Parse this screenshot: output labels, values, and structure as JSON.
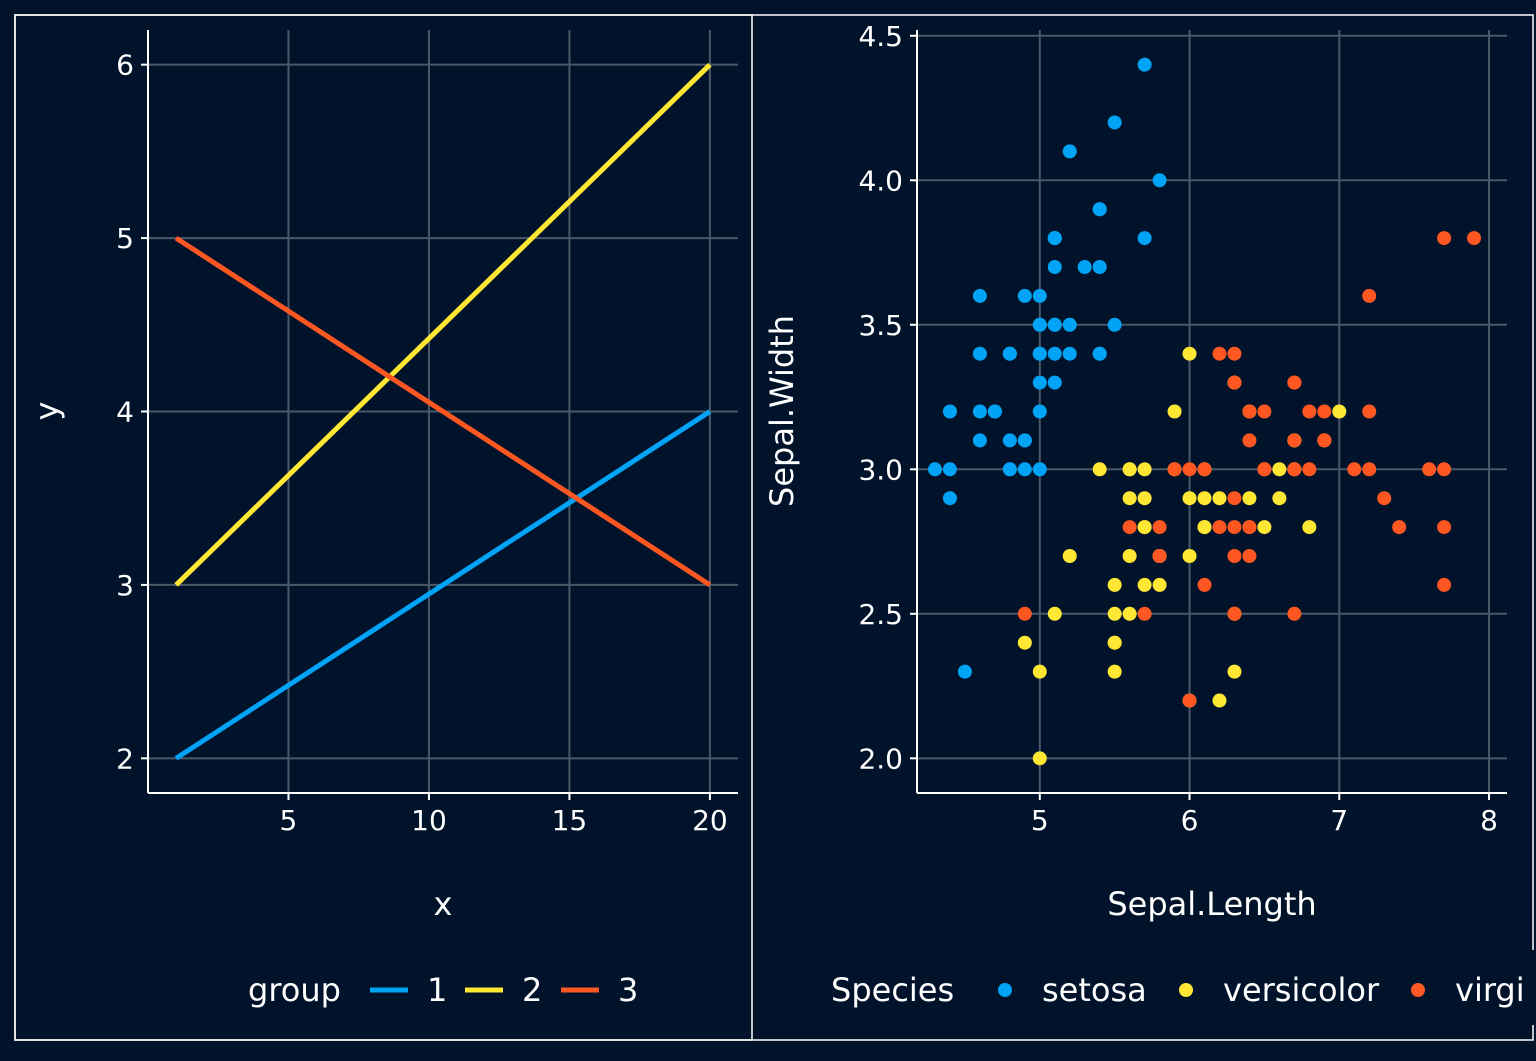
{
  "colors": {
    "background": "#00132a",
    "grid": "#4b5868",
    "axis": "#ffffff",
    "text": "#ffffff",
    "panel_border": "#ffffff"
  },
  "chart_data": [
    {
      "type": "line",
      "title": "",
      "xlabel": "x",
      "ylabel": "y",
      "xlim": [
        0,
        21
      ],
      "ylim": [
        1.8,
        6.2
      ],
      "xticks": [
        5,
        10,
        15,
        20
      ],
      "yticks": [
        2,
        3,
        4,
        5,
        6
      ],
      "grid": true,
      "legend": {
        "title": "group",
        "placement": "bottom"
      },
      "series": [
        {
          "name": "1",
          "color": "#00a3f5",
          "points": [
            [
              1,
              2
            ],
            [
              20,
              4
            ]
          ]
        },
        {
          "name": "2",
          "color": "#ffe733",
          "points": [
            [
              1,
              3
            ],
            [
              20,
              6
            ]
          ]
        },
        {
          "name": "3",
          "color": "#ff5722",
          "points": [
            [
              1,
              5
            ],
            [
              20,
              3
            ]
          ]
        }
      ]
    },
    {
      "type": "scatter",
      "title": "",
      "xlabel": "Sepal.Length",
      "ylabel": "Sepal.Width",
      "xlim": [
        4.18,
        8.12
      ],
      "ylim": [
        1.88,
        4.52
      ],
      "xticks": [
        5,
        6,
        7,
        8
      ],
      "yticks": [
        2.0,
        2.5,
        3.0,
        3.5,
        4.0,
        4.5
      ],
      "ytick_labels": [
        "2.0",
        "2.5",
        "3.0",
        "3.5",
        "4.0",
        "4.5"
      ],
      "grid": true,
      "legend": {
        "title": "Species",
        "placement": "bottom"
      },
      "series": [
        {
          "name": "setosa",
          "color": "#00a3f5",
          "points": [
            [
              5.1,
              3.5
            ],
            [
              4.9,
              3.0
            ],
            [
              4.7,
              3.2
            ],
            [
              4.6,
              3.1
            ],
            [
              5.0,
              3.6
            ],
            [
              5.4,
              3.9
            ],
            [
              4.6,
              3.4
            ],
            [
              5.0,
              3.4
            ],
            [
              4.4,
              2.9
            ],
            [
              4.9,
              3.1
            ],
            [
              5.4,
              3.7
            ],
            [
              4.8,
              3.4
            ],
            [
              4.8,
              3.0
            ],
            [
              4.3,
              3.0
            ],
            [
              5.8,
              4.0
            ],
            [
              5.7,
              4.4
            ],
            [
              5.4,
              3.9
            ],
            [
              5.1,
              3.5
            ],
            [
              5.7,
              3.8
            ],
            [
              5.1,
              3.8
            ],
            [
              5.4,
              3.4
            ],
            [
              5.1,
              3.7
            ],
            [
              4.6,
              3.6
            ],
            [
              5.1,
              3.3
            ],
            [
              4.8,
              3.4
            ],
            [
              5.0,
              3.0
            ],
            [
              5.0,
              3.4
            ],
            [
              5.2,
              3.5
            ],
            [
              5.2,
              3.4
            ],
            [
              4.7,
              3.2
            ],
            [
              4.8,
              3.1
            ],
            [
              5.4,
              3.4
            ],
            [
              5.2,
              4.1
            ],
            [
              5.5,
              4.2
            ],
            [
              4.9,
              3.1
            ],
            [
              5.0,
              3.2
            ],
            [
              5.5,
              3.5
            ],
            [
              4.9,
              3.6
            ],
            [
              4.4,
              3.0
            ],
            [
              5.1,
              3.4
            ],
            [
              5.0,
              3.5
            ],
            [
              4.5,
              2.3
            ],
            [
              4.4,
              3.2
            ],
            [
              5.0,
              3.5
            ],
            [
              5.1,
              3.8
            ],
            [
              4.8,
              3.0
            ],
            [
              5.1,
              3.8
            ],
            [
              4.6,
              3.2
            ],
            [
              5.3,
              3.7
            ],
            [
              5.0,
              3.3
            ]
          ]
        },
        {
          "name": "versicolor",
          "color": "#ffe733",
          "points": [
            [
              7.0,
              3.2
            ],
            [
              6.4,
              3.2
            ],
            [
              6.9,
              3.1
            ],
            [
              5.5,
              2.3
            ],
            [
              6.5,
              2.8
            ],
            [
              5.7,
              2.8
            ],
            [
              6.3,
              3.3
            ],
            [
              4.9,
              2.4
            ],
            [
              6.6,
              2.9
            ],
            [
              5.2,
              2.7
            ],
            [
              5.0,
              2.0
            ],
            [
              5.9,
              3.0
            ],
            [
              6.0,
              2.2
            ],
            [
              6.1,
              2.9
            ],
            [
              5.6,
              2.9
            ],
            [
              6.7,
              3.1
            ],
            [
              5.6,
              3.0
            ],
            [
              5.8,
              2.7
            ],
            [
              6.2,
              2.2
            ],
            [
              5.6,
              2.5
            ],
            [
              5.9,
              3.2
            ],
            [
              6.1,
              2.8
            ],
            [
              6.3,
              2.5
            ],
            [
              6.1,
              2.8
            ],
            [
              6.4,
              2.9
            ],
            [
              6.6,
              3.0
            ],
            [
              6.8,
              2.8
            ],
            [
              6.7,
              3.0
            ],
            [
              6.0,
              2.9
            ],
            [
              5.7,
              2.6
            ],
            [
              5.5,
              2.4
            ],
            [
              5.5,
              2.4
            ],
            [
              5.8,
              2.7
            ],
            [
              6.0,
              2.7
            ],
            [
              5.4,
              3.0
            ],
            [
              6.0,
              3.4
            ],
            [
              6.7,
              3.1
            ],
            [
              6.3,
              2.3
            ],
            [
              5.6,
              3.0
            ],
            [
              5.5,
              2.5
            ],
            [
              5.5,
              2.6
            ],
            [
              6.1,
              3.0
            ],
            [
              5.8,
              2.6
            ],
            [
              5.0,
              2.3
            ],
            [
              5.6,
              2.7
            ],
            [
              5.7,
              3.0
            ],
            [
              5.7,
              2.9
            ],
            [
              6.2,
              2.9
            ],
            [
              5.1,
              2.5
            ],
            [
              5.7,
              2.8
            ]
          ]
        },
        {
          "name": "virginica",
          "color": "#ff5722",
          "points": [
            [
              6.3,
              3.3
            ],
            [
              5.8,
              2.7
            ],
            [
              7.1,
              3.0
            ],
            [
              6.3,
              2.9
            ],
            [
              6.5,
              3.0
            ],
            [
              7.6,
              3.0
            ],
            [
              4.9,
              2.5
            ],
            [
              7.3,
              2.9
            ],
            [
              6.7,
              2.5
            ],
            [
              7.2,
              3.6
            ],
            [
              6.5,
              3.2
            ],
            [
              6.4,
              2.7
            ],
            [
              6.8,
              3.0
            ],
            [
              5.7,
              2.5
            ],
            [
              5.8,
              2.8
            ],
            [
              6.4,
              3.2
            ],
            [
              6.5,
              3.0
            ],
            [
              7.7,
              3.8
            ],
            [
              7.7,
              2.6
            ],
            [
              6.0,
              2.2
            ],
            [
              6.9,
              3.2
            ],
            [
              5.6,
              2.8
            ],
            [
              7.7,
              2.8
            ],
            [
              6.3,
              2.7
            ],
            [
              6.7,
              3.3
            ],
            [
              7.2,
              3.2
            ],
            [
              6.2,
              2.8
            ],
            [
              6.1,
              3.0
            ],
            [
              6.4,
              2.8
            ],
            [
              7.2,
              3.0
            ],
            [
              7.4,
              2.8
            ],
            [
              7.9,
              3.8
            ],
            [
              6.4,
              2.8
            ],
            [
              6.3,
              2.8
            ],
            [
              6.1,
              2.6
            ],
            [
              7.7,
              3.0
            ],
            [
              6.3,
              3.4
            ],
            [
              6.4,
              3.1
            ],
            [
              6.0,
              3.0
            ],
            [
              6.9,
              3.1
            ],
            [
              6.7,
              3.1
            ],
            [
              6.9,
              3.1
            ],
            [
              5.8,
              2.7
            ],
            [
              6.8,
              3.2
            ],
            [
              6.7,
              3.3
            ],
            [
              6.7,
              3.0
            ],
            [
              6.3,
              2.5
            ],
            [
              6.5,
              3.0
            ],
            [
              6.2,
              3.4
            ],
            [
              5.9,
              3.0
            ]
          ]
        }
      ]
    }
  ]
}
